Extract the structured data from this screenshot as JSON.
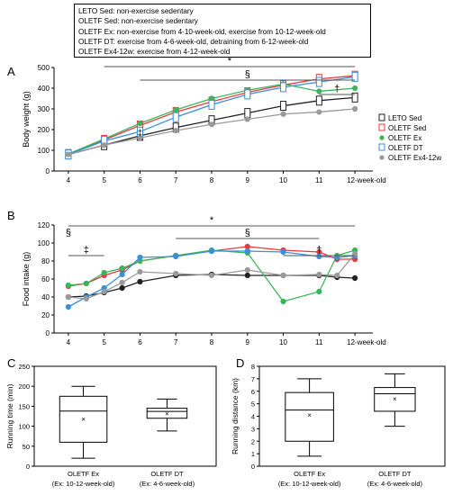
{
  "legend_box": {
    "lines": [
      "LETO Sed: non-exercise sedentary",
      "OLETF Sed: non-exercise sedentary",
      "OLETF Ex: non-exercise from 4-10-week-old, exercise from 10-12-week-old",
      "OLETF DT: exercise from 4-6-week-old, detraining from 6-12-week-old",
      "OLETF Ex4-12w: exercise from 4-12-week-old"
    ]
  },
  "colors": {
    "LETO Sed": "#222222",
    "OLETF Sed": "#e8383c",
    "OLETF Ex": "#3cb55a",
    "OLETF DT": "#3a8fd6",
    "OLETF Ex4-12w": "#9a9a9a"
  },
  "chart_data": [
    {
      "panel": "A",
      "type": "line",
      "ylabel": "Body weight (g)",
      "ylim": [
        0,
        500
      ],
      "yticks": [
        0,
        100,
        200,
        300,
        400,
        500
      ],
      "x": [
        4,
        5,
        6,
        7,
        8,
        9,
        10,
        11,
        12
      ],
      "xtick_labels": [
        "4",
        "5",
        "6",
        "7",
        "8",
        "9",
        "10",
        "11",
        "12-week-old"
      ],
      "legend_position": "right",
      "series": [
        {
          "name": "LETO Sed",
          "values": [
            80,
            125,
            170,
            210,
            245,
            280,
            315,
            340,
            355
          ]
        },
        {
          "name": "OLETF Sed",
          "values": [
            82,
            150,
            220,
            285,
            335,
            380,
            415,
            445,
            460
          ]
        },
        {
          "name": "OLETF Ex",
          "values": [
            82,
            155,
            230,
            295,
            350,
            390,
            420,
            385,
            400
          ]
        },
        {
          "name": "OLETF DT",
          "values": [
            80,
            145,
            190,
            260,
            320,
            370,
            405,
            430,
            455
          ]
        },
        {
          "name": "OLETF Ex4-12w",
          "values": [
            80,
            125,
            160,
            195,
            225,
            250,
            275,
            285,
            300
          ]
        }
      ],
      "annotations": [
        {
          "text": "*",
          "x_from": 5,
          "x_to": 12,
          "level": 1
        },
        {
          "text": "§",
          "x_from": 6,
          "x_to": 12,
          "level": 2
        },
        {
          "text": "†",
          "x_from": 11,
          "x_to": 12,
          "level": 3
        },
        {
          "text": "‡",
          "x": 6,
          "level": 4
        }
      ]
    },
    {
      "panel": "B",
      "type": "line",
      "ylabel": "Food intake (g)",
      "ylim": [
        0,
        120
      ],
      "yticks": [
        0,
        20,
        40,
        60,
        80,
        100,
        120
      ],
      "x": [
        4,
        4.5,
        5,
        5.5,
        6,
        7,
        8,
        9,
        10,
        11,
        11.5,
        12
      ],
      "xtick_labels": [
        "4",
        "5",
        "6",
        "7",
        "8",
        "9",
        "10",
        "11",
        "12-week-old"
      ],
      "series": [
        {
          "name": "LETO Sed",
          "values": [
            40,
            41,
            45,
            50,
            57,
            64,
            65,
            64,
            64,
            64,
            62,
            61
          ]
        },
        {
          "name": "OLETF Sed",
          "values": [
            52,
            55,
            64,
            70,
            80,
            86,
            91,
            96,
            92,
            90,
            82,
            82
          ]
        },
        {
          "name": "OLETF Ex",
          "values": [
            53,
            55,
            67,
            72,
            80,
            86,
            92,
            89,
            35,
            46,
            86,
            92
          ]
        },
        {
          "name": "OLETF DT",
          "values": [
            29,
            40,
            50,
            65,
            84,
            85,
            91,
            91,
            90,
            85,
            84,
            86
          ]
        },
        {
          "name": "OLETF Ex4-12w",
          "values": [
            40,
            38,
            46,
            56,
            68,
            66,
            64,
            70,
            64,
            65,
            64,
            88
          ]
        }
      ],
      "annotations": [
        {
          "text": "*",
          "x_from": 4,
          "x_to": 12,
          "level": 1
        },
        {
          "text": "§",
          "x_from": 7,
          "x_to": 11,
          "level": 2
        },
        {
          "text": "§",
          "x": 4,
          "level": 2
        },
        {
          "text": "‡",
          "x_from": 4,
          "x_to": 5,
          "level": 3
        },
        {
          "text": "†",
          "x_from": 10,
          "x_to": 12,
          "level": 3
        }
      ]
    },
    {
      "panel": "C",
      "type": "box",
      "ylabel": "Running time (min)",
      "ylim": [
        0,
        250
      ],
      "yticks": [
        0,
        50,
        100,
        150,
        200,
        250
      ],
      "categories": [
        "OLETF Ex\n(Ex: 10-12-week-old)",
        "OLETF DT\n(Ex: 4-6-week-old)"
      ],
      "category_lines": [
        [
          "OLETF Ex",
          "(Ex: 10-12-week-old)"
        ],
        [
          "OLETF DT",
          "(Ex: 4-6-week-old)"
        ]
      ],
      "boxes": [
        {
          "min": 20,
          "q1": 60,
          "median": 138,
          "q3": 175,
          "max": 200,
          "mean": 118
        },
        {
          "min": 88,
          "q1": 120,
          "median": 137,
          "q3": 145,
          "max": 168,
          "mean": 132
        }
      ]
    },
    {
      "panel": "D",
      "type": "box",
      "ylabel": "Running distance (km)",
      "ylim": [
        0,
        8
      ],
      "yticks": [
        0,
        1,
        2,
        3,
        4,
        5,
        6,
        7,
        8
      ],
      "categories": [
        "OLETF Ex\n(Ex: 10-12-week-old)",
        "OLETF DT\n(Ex: 4-6-week-old)"
      ],
      "category_lines": [
        [
          "OLETF Ex",
          "(Ex: 10-12-week-old)"
        ],
        [
          "OLETF DT",
          "(Ex: 4-6-week-old)"
        ]
      ],
      "boxes": [
        {
          "min": 0.8,
          "q1": 2.0,
          "median": 4.5,
          "q3": 5.9,
          "max": 7.0,
          "mean": 4.1
        },
        {
          "min": 3.2,
          "q1": 4.4,
          "median": 5.8,
          "q3": 6.3,
          "max": 7.4,
          "mean": 5.4
        }
      ]
    }
  ],
  "panel_labels": [
    "A",
    "B",
    "C",
    "D"
  ]
}
